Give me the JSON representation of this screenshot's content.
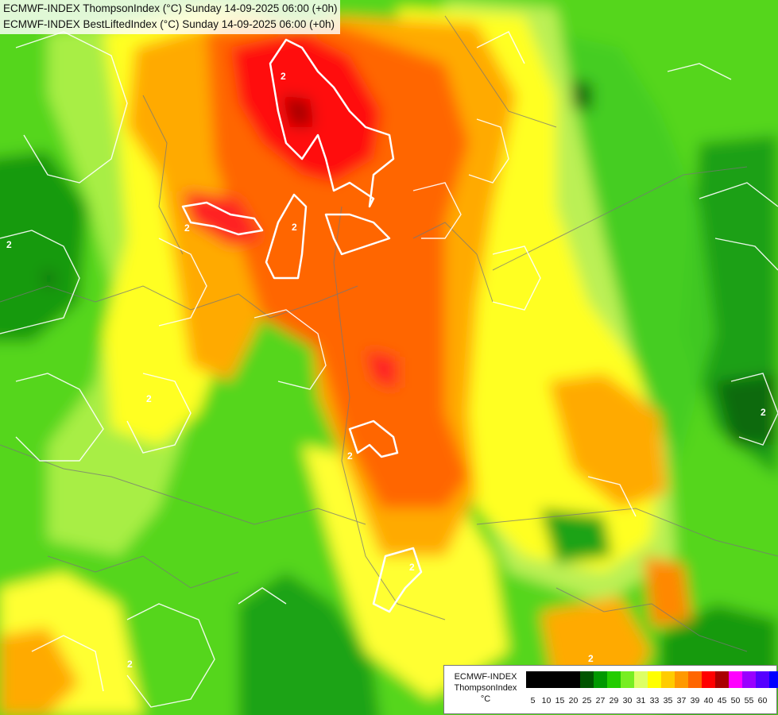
{
  "title": {
    "line1": "ECMWF-INDEX ThompsonIndex (°C) Sunday 14-09-2025 06:00 (+0h)",
    "line2": "ECMWF-INDEX BestLiftedIndex (°C) Sunday 14-09-2025 06:00 (+0h)"
  },
  "legend": {
    "model": "ECMWF-INDEX",
    "field": "ThompsonIndex",
    "unit": "°C",
    "ticks": [
      "5",
      "10",
      "15",
      "20",
      "25",
      "27",
      "29",
      "30",
      "31",
      "33",
      "35",
      "37",
      "39",
      "40",
      "45",
      "50",
      "55",
      "60"
    ],
    "colors": [
      "#000000",
      "#000000",
      "#000000",
      "#000000",
      "#005500",
      "#009900",
      "#22cc00",
      "#77ee22",
      "#ddff66",
      "#ffff00",
      "#ffcc00",
      "#ff9900",
      "#ff6600",
      "#ff0000",
      "#aa0000",
      "#ff00ff",
      "#9900ff",
      "#5500ff",
      "#0000ff"
    ]
  },
  "contour_labels": [
    "2",
    "2",
    "2",
    "2",
    "2",
    "2",
    "2",
    "2",
    "2",
    "2"
  ]
}
